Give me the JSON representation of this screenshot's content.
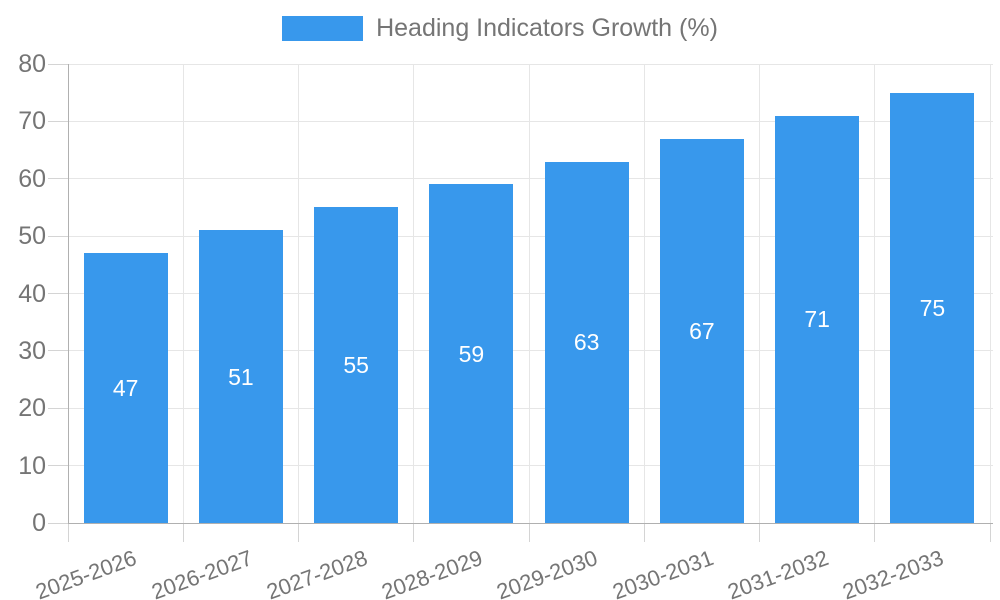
{
  "legend": {
    "label": "Heading Indicators Growth (%)"
  },
  "chart_data": {
    "type": "bar",
    "title": "Heading Indicators Growth (%)",
    "categories": [
      "2025-2026",
      "2026-2027",
      "2027-2028",
      "2028-2029",
      "2029-2030",
      "2030-2031",
      "2031-2032",
      "2032-2033"
    ],
    "values": [
      47,
      51,
      55,
      59,
      63,
      67,
      71,
      75
    ],
    "series_name": "Heading Indicators Growth (%)",
    "xlabel": "",
    "ylabel": "",
    "ylim": [
      0,
      80
    ],
    "ytick_step": 10,
    "yticks": [
      0,
      10,
      20,
      30,
      40,
      50,
      60,
      70,
      80
    ],
    "grid": true,
    "legend_position": "top",
    "value_labels_inside_bars": true,
    "colors": {
      "bar": "#3898ec",
      "value_label": "#ffffff",
      "axis_text": "#757575",
      "grid_line": "#e6e6e6",
      "tick_line": "#d4d4d4",
      "axis_line": "#b0b0b0"
    }
  }
}
